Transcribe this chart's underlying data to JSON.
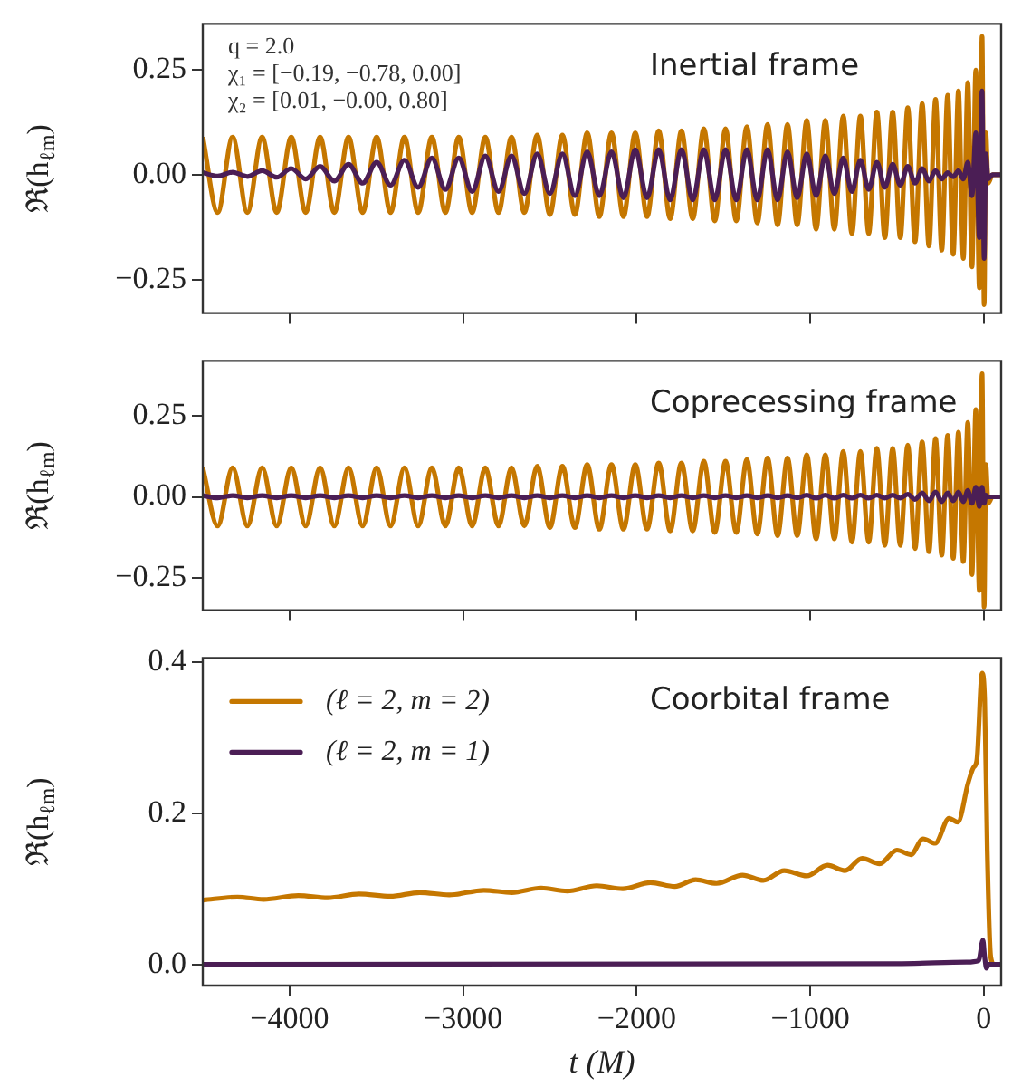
{
  "chart_data": [
    {
      "type": "line",
      "title": "Inertial frame",
      "ylabel": "ℜ(h$_{ℓm}$)",
      "annotations": [
        "q = 2.0",
        "χ₁ = [−0.19, −0.78, 0.00]",
        "χ₂ = [0.01, −0.00, 0.80]"
      ],
      "x": [
        -4500,
        -4414,
        -4328,
        -4243,
        -4158,
        -4074,
        -3990,
        -3907,
        -3824,
        -3742,
        -3660,
        -3579,
        -3498,
        -3418,
        -3338,
        -3259,
        -3180,
        -3102,
        -3025,
        -2948,
        -2872,
        -2796,
        -2721,
        -2647,
        -2573,
        -2500,
        -2428,
        -2356,
        -2285,
        -2215,
        -2145,
        -2076,
        -2008,
        -1940,
        -1873,
        -1807,
        -1742,
        -1677,
        -1613,
        -1550,
        -1488,
        -1426,
        -1365,
        -1305,
        -1246,
        -1188,
        -1131,
        -1075,
        -1020,
        -966,
        -913,
        -861,
        -810,
        -760,
        -711,
        -663,
        -616,
        -570,
        -525,
        -481,
        -438,
        -396,
        -355,
        -316,
        -278,
        -242,
        -208,
        -176,
        -146,
        -118,
        -92,
        -68,
        -46,
        -26,
        -10,
        2,
        12,
        25,
        50,
        100
      ],
      "series": [
        {
          "color": "#c57700",
          "values": [
            0.09,
            -0.09,
            0.09,
            -0.09,
            0.09,
            -0.09,
            0.09,
            -0.09,
            0.09,
            -0.09,
            0.09,
            -0.09,
            0.09,
            -0.09,
            0.09,
            -0.09,
            0.09,
            -0.09,
            0.09,
            -0.09,
            0.09,
            -0.09,
            0.09,
            -0.09,
            0.095,
            -0.095,
            0.095,
            -0.095,
            0.1,
            -0.1,
            0.1,
            -0.1,
            0.1,
            -0.1,
            0.105,
            -0.105,
            0.105,
            -0.105,
            0.11,
            -0.11,
            0.11,
            -0.11,
            0.115,
            -0.115,
            0.12,
            -0.12,
            0.12,
            -0.12,
            0.13,
            -0.13,
            0.13,
            -0.13,
            0.14,
            -0.14,
            0.14,
            -0.14,
            0.15,
            -0.15,
            0.15,
            -0.15,
            0.16,
            -0.16,
            0.17,
            -0.17,
            0.18,
            -0.18,
            0.19,
            -0.19,
            0.2,
            -0.2,
            0.22,
            -0.22,
            0.25,
            -0.27,
            0.33,
            -0.31,
            0.1,
            -0.02,
            0,
            0
          ]
        },
        {
          "color": "#4b1e55",
          "values": [
            0.005,
            -0.003,
            0.006,
            -0.004,
            0.01,
            -0.006,
            0.015,
            -0.01,
            0.02,
            -0.015,
            0.025,
            -0.02,
            0.03,
            -0.025,
            0.035,
            -0.03,
            0.04,
            -0.035,
            0.04,
            -0.04,
            0.045,
            -0.04,
            0.045,
            -0.045,
            0.05,
            -0.045,
            0.05,
            -0.05,
            0.055,
            -0.05,
            0.055,
            -0.055,
            0.06,
            -0.055,
            0.06,
            -0.06,
            0.06,
            -0.06,
            0.06,
            -0.06,
            0.06,
            -0.06,
            0.06,
            -0.06,
            0.06,
            -0.06,
            0.055,
            -0.055,
            0.05,
            -0.05,
            0.045,
            -0.045,
            0.04,
            -0.04,
            0.035,
            -0.035,
            0.03,
            -0.03,
            0.025,
            -0.025,
            0.02,
            -0.02,
            0.015,
            -0.015,
            0.01,
            -0.01,
            0.005,
            -0.005,
            0.01,
            -0.01,
            0.03,
            -0.05,
            0.1,
            -0.15,
            0.2,
            -0.2,
            0.05,
            -0.01,
            0,
            0
          ]
        }
      ],
      "xlim": [
        -4500,
        100
      ],
      "xticks": [
        -4000,
        -3000,
        -2000,
        -1000,
        0
      ],
      "ylim": [
        -0.33,
        0.36
      ],
      "yticks": [
        {
          "value": -0.25,
          "label": "−0.25"
        },
        {
          "value": 0,
          "label": "0.00"
        },
        0.25
      ],
      "tick_labels": "y"
    },
    {
      "type": "line",
      "title": "Coprecessing frame",
      "ylabel": "ℜ(h$_{ℓm}$)",
      "x": [
        -4500,
        -4414,
        -4328,
        -4243,
        -4158,
        -4074,
        -3990,
        -3907,
        -3824,
        -3742,
        -3660,
        -3579,
        -3498,
        -3418,
        -3338,
        -3259,
        -3180,
        -3102,
        -3025,
        -2948,
        -2872,
        -2796,
        -2721,
        -2647,
        -2573,
        -2500,
        -2428,
        -2356,
        -2285,
        -2215,
        -2145,
        -2076,
        -2008,
        -1940,
        -1873,
        -1807,
        -1742,
        -1677,
        -1613,
        -1550,
        -1488,
        -1426,
        -1365,
        -1305,
        -1246,
        -1188,
        -1131,
        -1075,
        -1020,
        -966,
        -913,
        -861,
        -810,
        -760,
        -711,
        -663,
        -616,
        -570,
        -525,
        -481,
        -438,
        -396,
        -355,
        -316,
        -278,
        -242,
        -208,
        -176,
        -146,
        -118,
        -92,
        -68,
        -46,
        -26,
        -10,
        2,
        12,
        25,
        50,
        100
      ],
      "series": [
        {
          "color": "#c57700",
          "values": [
            0.09,
            -0.09,
            0.09,
            -0.09,
            0.09,
            -0.09,
            0.09,
            -0.09,
            0.09,
            -0.09,
            0.09,
            -0.09,
            0.09,
            -0.09,
            0.09,
            -0.09,
            0.09,
            -0.09,
            0.09,
            -0.09,
            0.09,
            -0.09,
            0.09,
            -0.09,
            0.095,
            -0.095,
            0.095,
            -0.095,
            0.1,
            -0.1,
            0.1,
            -0.1,
            0.1,
            -0.1,
            0.105,
            -0.105,
            0.105,
            -0.105,
            0.11,
            -0.11,
            0.11,
            -0.11,
            0.115,
            -0.115,
            0.12,
            -0.12,
            0.12,
            -0.12,
            0.13,
            -0.13,
            0.13,
            -0.13,
            0.14,
            -0.14,
            0.14,
            -0.14,
            0.15,
            -0.15,
            0.15,
            -0.15,
            0.16,
            -0.16,
            0.17,
            -0.17,
            0.18,
            -0.18,
            0.19,
            -0.19,
            0.2,
            -0.2,
            0.23,
            -0.24,
            0.27,
            -0.29,
            0.38,
            -0.34,
            0.1,
            -0.02,
            0,
            0
          ]
        },
        {
          "color": "#4b1e55",
          "values": [
            0.004,
            -0.003,
            0.004,
            -0.003,
            0.004,
            -0.003,
            0.004,
            -0.003,
            0.004,
            -0.003,
            0.004,
            -0.003,
            0.004,
            -0.003,
            0.004,
            -0.003,
            0.004,
            -0.003,
            0.004,
            -0.003,
            0.004,
            -0.003,
            0.004,
            -0.003,
            0.004,
            -0.003,
            0.004,
            -0.003,
            0.004,
            -0.003,
            0.004,
            -0.003,
            0.004,
            -0.003,
            0.004,
            -0.003,
            0.004,
            -0.003,
            0.004,
            -0.003,
            0.004,
            -0.003,
            0.004,
            -0.003,
            0.004,
            -0.003,
            0.004,
            -0.003,
            0.005,
            -0.004,
            0.005,
            -0.004,
            0.005,
            -0.004,
            0.005,
            -0.004,
            0.005,
            -0.004,
            0.005,
            -0.004,
            0.008,
            -0.008,
            0.012,
            -0.012,
            0.015,
            -0.015,
            0.012,
            -0.012,
            0.015,
            -0.015,
            0.02,
            -0.02,
            0.03,
            -0.03,
            0.03,
            -0.02,
            0.005,
            0,
            0,
            0
          ]
        }
      ],
      "xlim": [
        -4500,
        100
      ],
      "xticks": [
        -4000,
        -3000,
        -2000,
        -1000,
        0
      ],
      "ylim": [
        -0.35,
        0.42
      ],
      "yticks": [
        {
          "value": -0.25,
          "label": "−0.25"
        },
        {
          "value": 0,
          "label": "0.00"
        },
        0.25
      ],
      "tick_labels": "y"
    },
    {
      "type": "line",
      "title": "Coorbital frame",
      "ylabel": "ℜ(h$_{ℓm}$)",
      "xlabel": "t (M)",
      "series": [
        {
          "name": "(ℓ = 2, m = 2)",
          "color": "#c57700",
          "x": [
            -4500,
            -4300,
            -4150,
            -3950,
            -3780,
            -3600,
            -3420,
            -3250,
            -3080,
            -2880,
            -2720,
            -2550,
            -2400,
            -2230,
            -2080,
            -1920,
            -1780,
            -1660,
            -1540,
            -1390,
            -1270,
            -1150,
            -1020,
            -900,
            -800,
            -700,
            -600,
            -500,
            -420,
            -350,
            -280,
            -200,
            -150,
            -90,
            -60,
            -40,
            -10,
            5,
            20,
            40,
            60,
            100
          ],
          "values": [
            0.085,
            0.089,
            0.086,
            0.091,
            0.088,
            0.093,
            0.09,
            0.095,
            0.092,
            0.098,
            0.095,
            0.101,
            0.097,
            0.104,
            0.1,
            0.108,
            0.103,
            0.112,
            0.107,
            0.118,
            0.111,
            0.124,
            0.117,
            0.131,
            0.124,
            0.14,
            0.133,
            0.151,
            0.145,
            0.166,
            0.16,
            0.193,
            0.188,
            0.24,
            0.26,
            0.27,
            0.385,
            0.35,
            0.15,
            0.01,
            0,
            0
          ]
        },
        {
          "name": "(ℓ = 2, m = 1)",
          "color": "#4b1e55",
          "x": [
            -4500,
            -500,
            -100,
            -30,
            -5,
            5,
            15,
            30,
            100
          ],
          "values": [
            0,
            0.001,
            0.003,
            0.005,
            0.032,
            0.01,
            -0.005,
            0,
            0
          ]
        }
      ],
      "xlim": [
        -4500,
        100
      ],
      "xticks": [
        {
          "value": -4000,
          "label": "−4000"
        },
        {
          "value": -3000,
          "label": "−3000"
        },
        {
          "value": -2000,
          "label": "−2000"
        },
        {
          "value": -1000,
          "label": "−1000"
        },
        0
      ],
      "ylim": [
        -0.028,
        0.405
      ],
      "yticks": [
        {
          "value": 0,
          "label": "0.0"
        },
        {
          "value": 0.2,
          "label": "0.2"
        },
        {
          "value": 0.4,
          "label": "0.4"
        }
      ],
      "legend": "top left"
    }
  ]
}
